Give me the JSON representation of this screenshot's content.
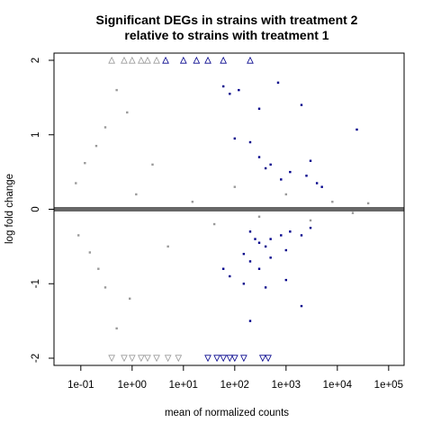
{
  "chart_data": {
    "type": "scatter",
    "title_line1": "Significant DEGs in strains with treatment 2",
    "title_line2": "relative to strains with treatment 1",
    "xlabel": "mean of normalized counts",
    "ylabel": "log fold change",
    "x_scale": "log10",
    "xlim": [
      0.03,
      200000
    ],
    "ylim": [
      -2,
      2
    ],
    "x_ticks": [
      {
        "value": 0.1,
        "label": "1e-01"
      },
      {
        "value": 1,
        "label": "1e+00"
      },
      {
        "value": 10,
        "label": "1e+01"
      },
      {
        "value": 100,
        "label": "1e+02"
      },
      {
        "value": 1000,
        "label": "1e+03"
      },
      {
        "value": 10000,
        "label": "1e+04"
      },
      {
        "value": 100000,
        "label": "1e+05"
      }
    ],
    "y_ticks": [
      {
        "value": -2,
        "label": "-2"
      },
      {
        "value": -1,
        "label": "-1"
      },
      {
        "value": 0,
        "label": "0"
      },
      {
        "value": 1,
        "label": "1"
      },
      {
        "value": 2,
        "label": "2"
      }
    ],
    "reference_line_y": 0,
    "grid": false,
    "legend": "none",
    "colors": {
      "not_significant": "#999999",
      "significant": "#00008b",
      "reference_line": "#666666"
    },
    "series": [
      {
        "significance": "not significant",
        "marker": "dot",
        "points": [
          [
            0.08,
            0.35
          ],
          [
            0.09,
            -0.35
          ],
          [
            0.12,
            0.62
          ],
          [
            0.15,
            -0.58
          ],
          [
            0.2,
            0.85
          ],
          [
            0.22,
            -0.8
          ],
          [
            0.3,
            1.1
          ],
          [
            0.3,
            -1.05
          ],
          [
            0.5,
            1.6
          ],
          [
            0.5,
            -1.6
          ],
          [
            0.8,
            1.3
          ],
          [
            0.9,
            -1.2
          ],
          [
            1.2,
            0.2
          ],
          [
            2.5,
            0.6
          ],
          [
            5,
            -0.5
          ],
          [
            15,
            0.1
          ],
          [
            40,
            -0.2
          ],
          [
            100,
            0.3
          ],
          [
            300,
            -0.1
          ],
          [
            1000,
            0.2
          ],
          [
            3000,
            -0.15
          ],
          [
            8000,
            0.1
          ],
          [
            20000,
            -0.05
          ],
          [
            40000,
            0.08
          ]
        ]
      },
      {
        "significance": "significant",
        "marker": "dot",
        "points": [
          [
            60,
            1.65
          ],
          [
            80,
            1.55
          ],
          [
            120,
            1.6
          ],
          [
            300,
            1.35
          ],
          [
            700,
            1.7
          ],
          [
            2000,
            1.4
          ],
          [
            24000,
            1.07
          ],
          [
            100,
            0.95
          ],
          [
            200,
            0.9
          ],
          [
            300,
            0.7
          ],
          [
            400,
            0.55
          ],
          [
            500,
            0.6
          ],
          [
            800,
            0.4
          ],
          [
            1200,
            0.5
          ],
          [
            2500,
            0.45
          ],
          [
            3000,
            0.65
          ],
          [
            4000,
            0.35
          ],
          [
            5000,
            0.3
          ],
          [
            200,
            -0.3
          ],
          [
            250,
            -0.4
          ],
          [
            300,
            -0.45
          ],
          [
            400,
            -0.5
          ],
          [
            500,
            -0.4
          ],
          [
            800,
            -0.35
          ],
          [
            1200,
            -0.3
          ],
          [
            2000,
            -0.35
          ],
          [
            3000,
            -0.25
          ],
          [
            150,
            -0.6
          ],
          [
            200,
            -0.7
          ],
          [
            300,
            -0.8
          ],
          [
            500,
            -0.65
          ],
          [
            1000,
            -0.55
          ],
          [
            60,
            -0.8
          ],
          [
            80,
            -0.9
          ],
          [
            150,
            -1.0
          ],
          [
            400,
            -1.05
          ],
          [
            1000,
            -0.95
          ],
          [
            2000,
            -1.3
          ],
          [
            200,
            -1.5
          ]
        ]
      },
      {
        "significance": "not significant, beyond axis limits",
        "marker": "open triangle",
        "points": [
          [
            0.4,
            2
          ],
          [
            0.7,
            2
          ],
          [
            1.0,
            2
          ],
          [
            1.5,
            2
          ],
          [
            2,
            2
          ],
          [
            3,
            2
          ],
          [
            0.4,
            -2
          ],
          [
            0.7,
            -2
          ],
          [
            1.0,
            -2
          ],
          [
            1.5,
            -2
          ],
          [
            2,
            -2
          ],
          [
            3,
            -2
          ],
          [
            5,
            -2
          ],
          [
            8,
            -2
          ]
        ]
      },
      {
        "significance": "significant, beyond axis limits",
        "marker": "open triangle",
        "points": [
          [
            4.5,
            2
          ],
          [
            10,
            2
          ],
          [
            18,
            2
          ],
          [
            30,
            2
          ],
          [
            60,
            2
          ],
          [
            200,
            2
          ],
          [
            30,
            -2
          ],
          [
            45,
            -2
          ],
          [
            60,
            -2
          ],
          [
            80,
            -2
          ],
          [
            100,
            -2
          ],
          [
            150,
            -2
          ],
          [
            350,
            -2
          ],
          [
            450,
            -2
          ]
        ]
      }
    ]
  }
}
